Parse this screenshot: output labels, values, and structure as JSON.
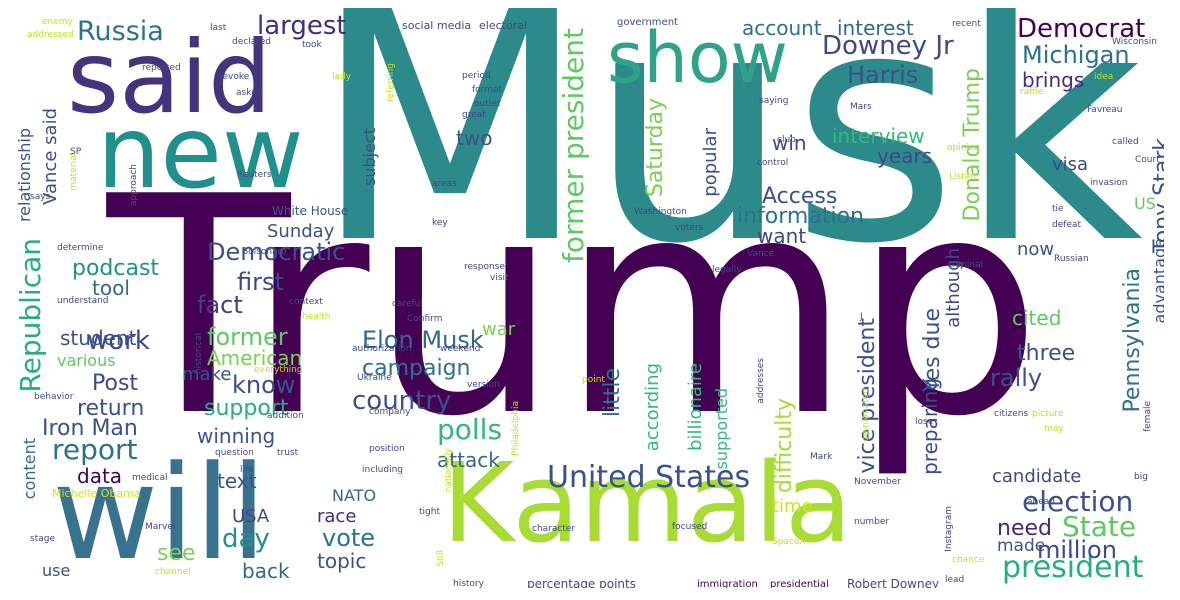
{
  "background": "#ffffff",
  "palette": {
    "dark_purple": "#440154",
    "purple": "#472c7a",
    "indigo": "#3b518b",
    "blue": "#2c718e",
    "teal": "#21908d",
    "sea": "#27ad81",
    "green": "#5cc863",
    "lime": "#aadc32",
    "yellow": "#d2e21b"
  },
  "words": [
    {
      "text": "Musk",
      "color": "#2c8a8a",
      "weight": 100
    },
    {
      "text": "Trump",
      "color": "#440154",
      "weight": 98
    },
    {
      "text": "Kamala",
      "color": "#a8db34",
      "weight": 70
    },
    {
      "text": "will",
      "color": "#39728f",
      "weight": 72
    },
    {
      "text": "said",
      "color": "#46337e",
      "weight": 60
    },
    {
      "text": "new",
      "color": "#21908d",
      "weight": 58
    },
    {
      "text": "show",
      "color": "#2fa38a",
      "weight": 50
    },
    {
      "text": "United States",
      "color": "#3b518b",
      "weight": 20
    },
    {
      "text": "president",
      "color": "#27ad81",
      "weight": 20
    },
    {
      "text": "election",
      "color": "#3b518b",
      "weight": 18
    },
    {
      "text": "State",
      "color": "#5ec962",
      "weight": 18
    },
    {
      "text": "million",
      "color": "#3e4989",
      "weight": 16
    },
    {
      "text": "made",
      "color": "#39568c",
      "weight": 12
    },
    {
      "text": "need",
      "color": "#482878",
      "weight": 14
    },
    {
      "text": "Russia",
      "color": "#2c718e",
      "weight": 17
    },
    {
      "text": "largest",
      "color": "#472c7a",
      "weight": 16
    },
    {
      "text": "Democrat",
      "color": "#440154",
      "weight": 17
    },
    {
      "text": "Michigan",
      "color": "#2c728e",
      "weight": 16
    },
    {
      "text": "brings",
      "color": "#472d7b",
      "weight": 14
    },
    {
      "text": "Downey Jr",
      "color": "#3e4989",
      "weight": 16
    },
    {
      "text": "Harris",
      "color": "#3b518b",
      "weight": 16
    },
    {
      "text": "account",
      "color": "#2c728e",
      "weight": 13
    },
    {
      "text": "interest",
      "color": "#31688e",
      "weight": 13
    },
    {
      "text": "former president",
      "color": "#5ec962",
      "weight": 19
    },
    {
      "text": "Saturday",
      "color": "#7ad151",
      "weight": 15
    },
    {
      "text": "two",
      "color": "#3b518b",
      "weight": 13
    },
    {
      "text": "Donald Trump",
      "color": "#7ad151",
      "weight": 16
    },
    {
      "text": "Tony Stark",
      "color": "#3b528b",
      "weight": 16
    },
    {
      "text": "Pennsylvania",
      "color": "#2c718e",
      "weight": 16
    },
    {
      "text": "Republican",
      "color": "#27ad81",
      "weight": 17
    },
    {
      "text": "Democratic",
      "color": "#3b518b",
      "weight": 16
    },
    {
      "text": "Access",
      "color": "#3b528b",
      "weight": 14
    },
    {
      "text": "information",
      "color": "#2c718e",
      "weight": 15
    },
    {
      "text": "interview",
      "color": "#35b779",
      "weight": 14
    },
    {
      "text": "first",
      "color": "#3e4989",
      "weight": 15
    },
    {
      "text": "fact",
      "color": "#433e85",
      "weight": 15
    },
    {
      "text": "former",
      "color": "#5ec962",
      "weight": 16
    },
    {
      "text": "work",
      "color": "#3e4989",
      "weight": 17
    },
    {
      "text": "podcast",
      "color": "#21918c",
      "weight": 14
    },
    {
      "text": "tool",
      "color": "#31688e",
      "weight": 13
    },
    {
      "text": "campaign",
      "color": "#2c718e",
      "weight": 15
    },
    {
      "text": "Elon Musk",
      "color": "#31688e",
      "weight": 15
    },
    {
      "text": "country",
      "color": "#3b518b",
      "weight": 15
    },
    {
      "text": "polls",
      "color": "#35b779",
      "weight": 17
    },
    {
      "text": "attack",
      "color": "#31688e",
      "weight": 14
    },
    {
      "text": "know",
      "color": "#3b518b",
      "weight": 14
    },
    {
      "text": "support",
      "color": "#27ad81",
      "weight": 14
    },
    {
      "text": "winning",
      "color": "#3b528b",
      "weight": 13
    },
    {
      "text": "report",
      "color": "#2c718e",
      "weight": 17
    },
    {
      "text": "Iron Man",
      "color": "#3b518b",
      "weight": 14
    },
    {
      "text": "Post",
      "color": "#3e4989",
      "weight": 15
    },
    {
      "text": "return",
      "color": "#3b518b",
      "weight": 14
    },
    {
      "text": "data",
      "color": "#440154",
      "weight": 14
    },
    {
      "text": "text",
      "color": "#3b528b",
      "weight": 14
    },
    {
      "text": "day",
      "color": "#21918c",
      "weight": 16
    },
    {
      "text": "USA",
      "color": "#3e4989",
      "weight": 12
    },
    {
      "text": "see",
      "color": "#7ad151",
      "weight": 13
    },
    {
      "text": "back",
      "color": "#31688e",
      "weight": 14
    },
    {
      "text": "vote",
      "color": "#2c718e",
      "weight": 15
    },
    {
      "text": "race",
      "color": "#482878",
      "weight": 13
    },
    {
      "text": "topic",
      "color": "#3b518b",
      "weight": 13
    },
    {
      "text": "NATO",
      "color": "#31688e",
      "weight": 12
    },
    {
      "text": "student",
      "color": "#3b518b",
      "weight": 14
    },
    {
      "text": "various",
      "color": "#5ec962",
      "weight": 12
    },
    {
      "text": "American",
      "color": "#7ad151",
      "weight": 14
    },
    {
      "text": "make",
      "color": "#3b518b",
      "weight": 13
    },
    {
      "text": "war",
      "color": "#7ad151",
      "weight": 12
    },
    {
      "text": "little",
      "color": "#2c728e",
      "weight": 15
    },
    {
      "text": "according",
      "color": "#35b779",
      "weight": 12
    },
    {
      "text": "billionaire",
      "color": "#35b779",
      "weight": 12
    },
    {
      "text": "supported",
      "color": "#35b779",
      "weight": 11
    },
    {
      "text": "popular",
      "color": "#3b518b",
      "weight": 11
    },
    {
      "text": "difficulty",
      "color": "#a8db34",
      "weight": 14
    },
    {
      "text": "vice president",
      "color": "#3b528b",
      "weight": 15
    },
    {
      "text": "preparing",
      "color": "#3e4989",
      "weight": 13
    },
    {
      "text": "Yes due",
      "color": "#3b518b",
      "weight": 14
    },
    {
      "text": "although",
      "color": "#3e4989",
      "weight": 12
    },
    {
      "text": "want",
      "color": "#3e4989",
      "weight": 13
    },
    {
      "text": "win",
      "color": "#3e4989",
      "weight": 13
    },
    {
      "text": "years",
      "color": "#3e4989",
      "weight": 13
    },
    {
      "text": "visa",
      "color": "#3e4989",
      "weight": 12
    },
    {
      "text": "US",
      "color": "#5ec962",
      "weight": 11
    },
    {
      "text": "now",
      "color": "#3b528b",
      "weight": 12
    },
    {
      "text": "cited",
      "color": "#5ec962",
      "weight": 14
    },
    {
      "text": "three",
      "color": "#3b518b",
      "weight": 14
    },
    {
      "text": "rally",
      "color": "#3b518b",
      "weight": 15
    },
    {
      "text": "candidate",
      "color": "#3e4989",
      "weight": 12
    },
    {
      "text": "time",
      "color": "#d2e21b",
      "weight": 12
    },
    {
      "text": "advantage",
      "color": "#3b518b",
      "weight": 11
    },
    {
      "text": "content",
      "color": "#31688e",
      "weight": 11
    },
    {
      "text": "relationship",
      "color": "#3b518b",
      "weight": 11
    },
    {
      "text": "Vance said",
      "color": "#3b518b",
      "weight": 13
    },
    {
      "text": "subject",
      "color": "#3b518b",
      "weight": 11
    },
    {
      "text": "Sunday",
      "color": "#3b518b",
      "weight": 12
    },
    {
      "text": "White House",
      "color": "#3b518b",
      "weight": 9
    },
    {
      "text": "Michelle Obama",
      "color": "#d2e21b",
      "weight": 9
    },
    {
      "text": "use",
      "color": "#3b518b",
      "weight": 11
    },
    {
      "text": "percentage points",
      "color": "#3e4989",
      "weight": 9
    },
    {
      "text": "Robert Downey",
      "color": "#3e4989",
      "weight": 9
    },
    {
      "text": "immigration",
      "color": "#440154",
      "weight": 8
    },
    {
      "text": "presidential",
      "color": "#440154",
      "weight": 8
    },
    {
      "text": "social media",
      "color": "#3e4989",
      "weight": 8
    },
    {
      "text": "electoral",
      "color": "#3e4989",
      "weight": 7
    },
    {
      "text": "government",
      "color": "#3e4989",
      "weight": 7
    },
    {
      "text": "enemy",
      "color": "#c2df23",
      "weight": 6
    },
    {
      "text": "addressed",
      "color": "#c2df23",
      "weight": 6
    },
    {
      "text": "last",
      "color": "#3e4989",
      "weight": 6
    },
    {
      "text": "recent",
      "color": "#3e4989",
      "weight": 6
    },
    {
      "text": "Wisconsin",
      "color": "#3e4989",
      "weight": 6
    },
    {
      "text": "declared",
      "color": "#3e4989",
      "weight": 6
    },
    {
      "text": "took",
      "color": "#3e4989",
      "weight": 6
    },
    {
      "text": "reported",
      "color": "#3e4989",
      "weight": 6
    },
    {
      "text": "revoke",
      "color": "#3e4989",
      "weight": 6
    },
    {
      "text": "lady",
      "color": "#c2df23",
      "weight": 6
    },
    {
      "text": "period",
      "color": "#3e4989",
      "weight": 6
    },
    {
      "text": "format",
      "color": "#3e4989",
      "weight": 6
    },
    {
      "text": "outlet",
      "color": "#3e4989",
      "weight": 6
    },
    {
      "text": "great",
      "color": "#3e4989",
      "weight": 6
    },
    {
      "text": "asked",
      "color": "#3e4989",
      "weight": 6
    },
    {
      "text": "saying",
      "color": "#3e4989",
      "weight": 6
    },
    {
      "text": "Mars",
      "color": "#3e4989",
      "weight": 6
    },
    {
      "text": "raffle",
      "color": "#c2df23",
      "weight": 6
    },
    {
      "text": "idea",
      "color": "#c2df23",
      "weight": 6
    },
    {
      "text": "Favreau",
      "color": "#3e4989",
      "weight": 6
    },
    {
      "text": "called",
      "color": "#3e4989",
      "weight": 6
    },
    {
      "text": "Court",
      "color": "#3e4989",
      "weight": 6
    },
    {
      "text": "invasion",
      "color": "#3e4989",
      "weight": 6
    },
    {
      "text": "tie",
      "color": "#3e4989",
      "weight": 6
    },
    {
      "text": "defeat",
      "color": "#3e4989",
      "weight": 6
    },
    {
      "text": "Russian",
      "color": "#3e4989",
      "weight": 6
    },
    {
      "text": "club",
      "color": "#3e4989",
      "weight": 6
    },
    {
      "text": "control",
      "color": "#3e4989",
      "weight": 6
    },
    {
      "text": "opinion",
      "color": "#c2df23",
      "weight": 6
    },
    {
      "text": "Listen",
      "color": "#c2df23",
      "weight": 6
    },
    {
      "text": "material",
      "color": "#c2df23",
      "weight": 6
    },
    {
      "text": "SP",
      "color": "#3e4989",
      "weight": 6
    },
    {
      "text": "approach",
      "color": "#3e4989",
      "weight": 6
    },
    {
      "text": "says",
      "color": "#3e4989",
      "weight": 6
    },
    {
      "text": "Reuters",
      "color": "#3e4989",
      "weight": 6
    },
    {
      "text": "key",
      "color": "#3e4989",
      "weight": 6
    },
    {
      "text": "areas",
      "color": "#3e4989",
      "weight": 6
    },
    {
      "text": "Washington",
      "color": "#3e4989",
      "weight": 6
    },
    {
      "text": "Philadelphia",
      "color": "#c2df23",
      "weight": 6
    },
    {
      "text": "voters",
      "color": "#3e4989",
      "weight": 6
    },
    {
      "text": "determine",
      "color": "#3e4989",
      "weight": 6
    },
    {
      "text": "Bolsonaro",
      "color": "#3e4989",
      "weight": 6
    },
    {
      "text": "response",
      "color": "#3e4989",
      "weight": 6
    },
    {
      "text": "visit",
      "color": "#3e4989",
      "weight": 6
    },
    {
      "text": "legally",
      "color": "#3e4989",
      "weight": 6
    },
    {
      "text": "Vance",
      "color": "#3e4989",
      "weight": 6
    },
    {
      "text": "criminal",
      "color": "#3e4989",
      "weight": 6
    },
    {
      "text": "understand",
      "color": "#3e4989",
      "weight": 6
    },
    {
      "text": "historical",
      "color": "#3e4989",
      "weight": 6
    },
    {
      "text": "context",
      "color": "#3e4989",
      "weight": 6
    },
    {
      "text": "health",
      "color": "#c2df23",
      "weight": 6
    },
    {
      "text": "careful",
      "color": "#3e4989",
      "weight": 6
    },
    {
      "text": "Confirm",
      "color": "#3e4989",
      "weight": 6
    },
    {
      "text": "authorization",
      "color": "#3e4989",
      "weight": 6
    },
    {
      "text": "weekend",
      "color": "#3e4989",
      "weight": 6
    },
    {
      "text": "behavior",
      "color": "#3e4989",
      "weight": 6
    },
    {
      "text": "everything",
      "color": "#c2df23",
      "weight": 6
    },
    {
      "text": "Ukraine",
      "color": "#3e4989",
      "weight": 6
    },
    {
      "text": "version",
      "color": "#3e4989",
      "weight": 6
    },
    {
      "text": "point",
      "color": "#c2df23",
      "weight": 6
    },
    {
      "text": "addresses",
      "color": "#3e4989",
      "weight": 6
    },
    {
      "text": "addition",
      "color": "#3e4989",
      "weight": 6
    },
    {
      "text": "company",
      "color": "#3e4989",
      "weight": 6
    },
    {
      "text": "citizens",
      "color": "#3e4989",
      "weight": 6
    },
    {
      "text": "picture",
      "color": "#c2df23",
      "weight": 6
    },
    {
      "text": "may",
      "color": "#c2df23",
      "weight": 6
    },
    {
      "text": "female",
      "color": "#3e4989",
      "weight": 6
    },
    {
      "text": "question",
      "color": "#3e4989",
      "weight": 6
    },
    {
      "text": "trust",
      "color": "#3e4989",
      "weight": 6
    },
    {
      "text": "position",
      "color": "#3e4989",
      "weight": 6
    },
    {
      "text": "nationally",
      "color": "#c2df23",
      "weight": 6
    },
    {
      "text": "opinionated",
      "color": "#c2df23",
      "weight": 6
    },
    {
      "text": "lose",
      "color": "#3e4989",
      "weight": 6
    },
    {
      "text": "Mark",
      "color": "#3e4989",
      "weight": 6
    },
    {
      "text": "medical",
      "color": "#3e4989",
      "weight": 6
    },
    {
      "text": "life",
      "color": "#3e4989",
      "weight": 6
    },
    {
      "text": "including",
      "color": "#3e4989",
      "weight": 6
    },
    {
      "text": "Instagram",
      "color": "#3e4989",
      "weight": 6
    },
    {
      "text": "November",
      "color": "#3e4989",
      "weight": 6
    },
    {
      "text": "big",
      "color": "#3e4989",
      "weight": 6
    },
    {
      "text": "ahead",
      "color": "#3e4989",
      "weight": 6
    },
    {
      "text": "Marvel",
      "color": "#3e4989",
      "weight": 6
    },
    {
      "text": "tight",
      "color": "#3e4989",
      "weight": 6
    },
    {
      "text": "character",
      "color": "#3e4989",
      "weight": 6
    },
    {
      "text": "focused",
      "color": "#3e4989",
      "weight": 6
    },
    {
      "text": "number",
      "color": "#3e4989",
      "weight": 6
    },
    {
      "text": "stage",
      "color": "#3e4989",
      "weight": 6
    },
    {
      "text": "channel",
      "color": "#c2df23",
      "weight": 6
    },
    {
      "text": "Still",
      "color": "#c2df23",
      "weight": 6
    },
    {
      "text": "SpaceX",
      "color": "#c2df23",
      "weight": 6
    },
    {
      "text": "chance",
      "color": "#c2df23",
      "weight": 6
    },
    {
      "text": "lead",
      "color": "#3e4989",
      "weight": 6
    },
    {
      "text": "history",
      "color": "#3e4989",
      "weight": 6
    },
    {
      "text": "referring",
      "color": "#c2df23",
      "weight": 6
    },
    {
      "text": "J",
      "color": "#3e4989",
      "weight": 6
    }
  ]
}
